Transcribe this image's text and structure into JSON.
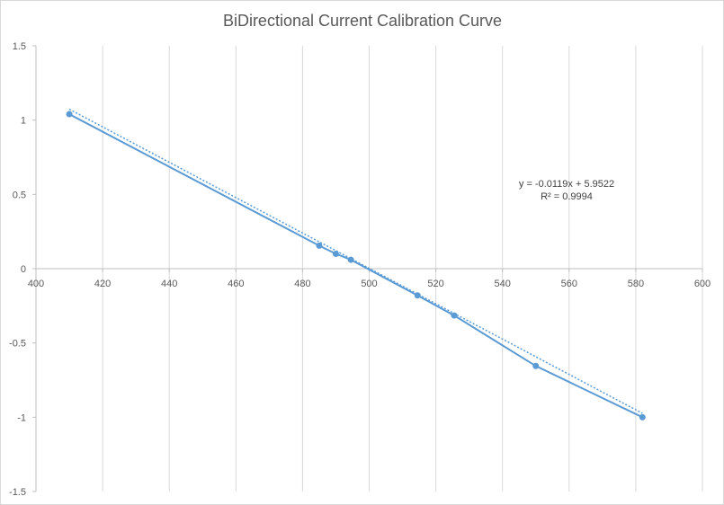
{
  "chart_data": {
    "type": "scatter",
    "title": "BiDirectional Current Calibration Curve",
    "xlabel": "",
    "ylabel": "",
    "xlim": [
      400,
      600
    ],
    "ylim": [
      -1.5,
      1.5
    ],
    "x_ticks": [
      400,
      420,
      440,
      460,
      480,
      500,
      520,
      540,
      560,
      580,
      600
    ],
    "y_ticks": [
      1.5,
      1,
      0.5,
      0,
      -0.5,
      -1,
      -1.5
    ],
    "x_tick_labels": [
      "400",
      "420",
      "440",
      "460",
      "480",
      "500",
      "520",
      "540",
      "560",
      "580",
      "600"
    ],
    "y_tick_labels": [
      "1.5",
      "1",
      "0.5",
      "0",
      "-0.5",
      "-1",
      "-1.5"
    ],
    "grid": "vertical",
    "series": [
      {
        "color": "#5b9bd5",
        "points": [
          {
            "x": 410,
            "y": 1.04
          },
          {
            "x": 485,
            "y": 0.155
          },
          {
            "x": 490,
            "y": 0.1
          },
          {
            "x": 494.5,
            "y": 0.06
          },
          {
            "x": 514.5,
            "y": -0.18
          },
          {
            "x": 525.5,
            "y": -0.315
          },
          {
            "x": 550,
            "y": -0.655
          },
          {
            "x": 582,
            "y": -1.0
          }
        ]
      }
    ],
    "trendline": {
      "type": "linear",
      "slope": -0.0119,
      "intercept": 5.9522,
      "x_range": [
        410,
        582
      ],
      "equation_label": "y = -0.0119x + 5.9522",
      "r2_label": "R² = 0.9994"
    }
  }
}
